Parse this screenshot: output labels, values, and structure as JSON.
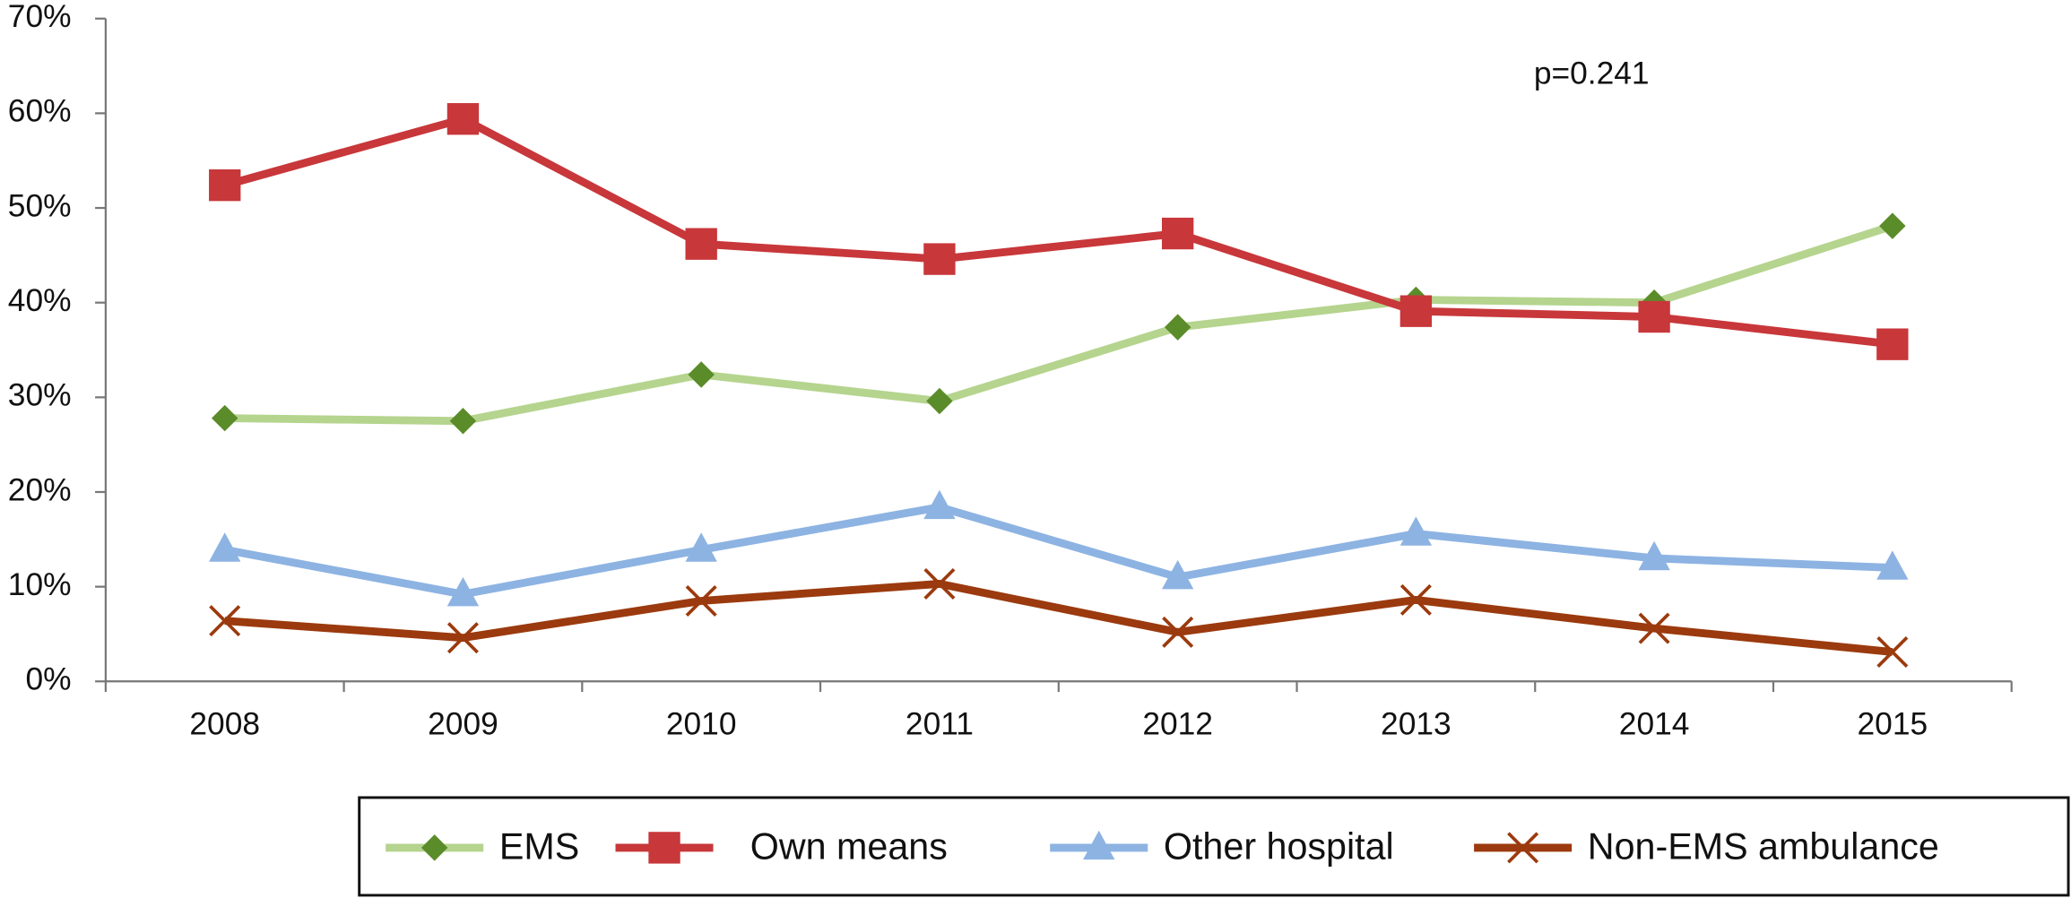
{
  "chart_data": {
    "type": "line",
    "annotation": "p=0.241",
    "categories": [
      "2008",
      "2009",
      "2010",
      "2011",
      "2012",
      "2013",
      "2014",
      "2015"
    ],
    "series": [
      {
        "name": "EMS",
        "color": "#b5d48e",
        "marker_color": "#5b8c2a",
        "values": [
          27.8,
          27.5,
          32.4,
          29.6,
          37.4,
          40.3,
          40.0,
          48.1
        ]
      },
      {
        "name": "Own means",
        "color": "#c8373a",
        "marker_color": "#c8373a",
        "values": [
          52.4,
          59.4,
          46.2,
          44.6,
          47.3,
          39.1,
          38.5,
          35.6
        ]
      },
      {
        "name": "Other hospital",
        "color": "#8db3e2",
        "marker_color": "#8db3e2",
        "values": [
          13.9,
          9.2,
          13.9,
          18.4,
          11.0,
          15.6,
          13.0,
          12.0
        ]
      },
      {
        "name": "Non-EMS ambulance",
        "color": "#9b3a0e",
        "marker_color": "#9b3a0e",
        "values": [
          6.4,
          4.6,
          8.5,
          10.3,
          5.2,
          8.6,
          5.6,
          3.1
        ]
      }
    ],
    "ylim": [
      0,
      70
    ],
    "yticks": [
      {
        "value": 0,
        "label": "0%"
      },
      {
        "value": 10,
        "label": "10%"
      },
      {
        "value": 20,
        "label": "20%"
      },
      {
        "value": 30,
        "label": "30%"
      },
      {
        "value": 40,
        "label": "40%"
      },
      {
        "value": 50,
        "label": "50%"
      },
      {
        "value": 60,
        "label": "60%"
      },
      {
        "value": 70,
        "label": "70%"
      }
    ],
    "legend_position": "bottom"
  }
}
